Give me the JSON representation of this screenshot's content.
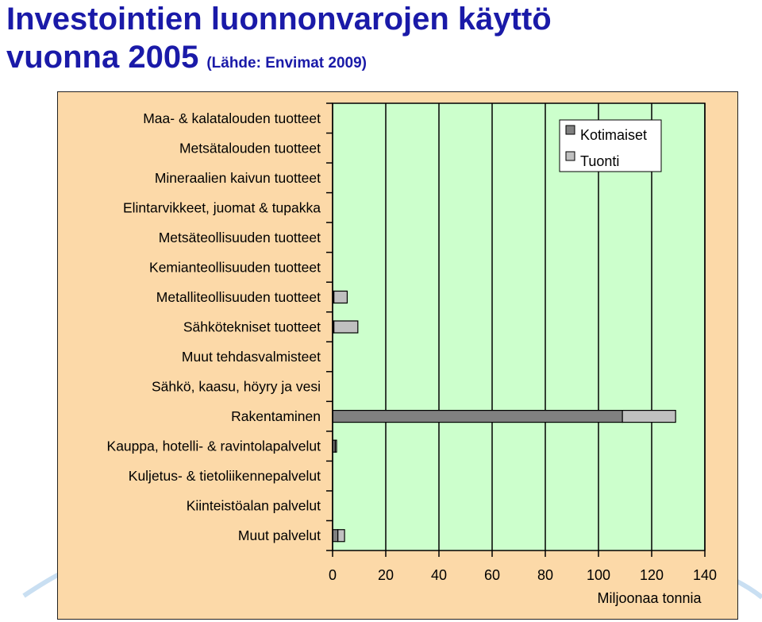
{
  "title": {
    "line1": "Investointien luonnonvarojen käyttö",
    "line2": "vuonna 2005",
    "source": "(Lähde: Envimat 2009)"
  },
  "colors": {
    "plot_bg": "#ccffcc",
    "frame_bg": "#fcd9a8",
    "title": "#1a1aa8",
    "series_domestic": "#808080",
    "series_import": "#c0c0c0"
  },
  "chart_data": {
    "type": "bar",
    "orientation": "horizontal",
    "stacked": true,
    "categories": [
      "Maa- & kalatalouden tuotteet",
      "Metsätalouden tuotteet",
      "Mineraalien kaivun tuotteet",
      "Elintarvikkeet, juomat & tupakka",
      "Metsäteollisuuden tuotteet",
      "Kemianteollisuuden tuotteet",
      "Metalliteollisuuden tuotteet",
      "Sähkötekniset tuotteet",
      "Muut tehdasvalmisteet",
      "Sähkö, kaasu, höyry ja vesi",
      "Rakentaminen",
      "Kauppa, hotelli- & ravintolapalvelut",
      "Kuljetus- & tietoliikennepalvelut",
      "Kiinteistöalan palvelut",
      "Muut palvelut"
    ],
    "series": [
      {
        "name": "Kotimaiset",
        "values": [
          0,
          0,
          0,
          0,
          0,
          0,
          0.5,
          0.5,
          0,
          0,
          109,
          1,
          0,
          0,
          2
        ]
      },
      {
        "name": "Tuonti",
        "values": [
          0,
          0,
          0,
          0,
          0,
          0,
          5,
          9,
          0,
          0,
          20,
          0.5,
          0,
          0,
          2.5
        ]
      }
    ],
    "xlim": [
      0,
      140
    ],
    "xticks": [
      "0",
      "20",
      "40",
      "60",
      "80",
      "100",
      "120",
      "140"
    ],
    "xlabel": "Miljoonaa tonnia",
    "grid": true,
    "legend_position": "top-right"
  }
}
